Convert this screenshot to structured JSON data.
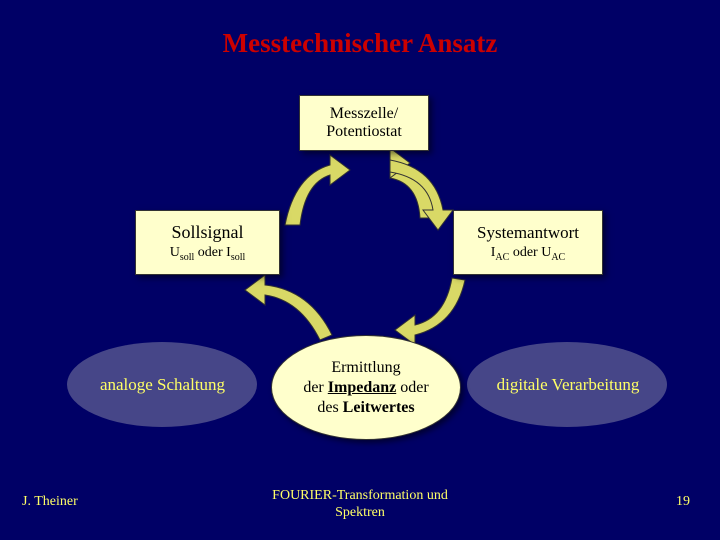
{
  "title": "Messtechnischer Ansatz",
  "boxes": {
    "top": {
      "line1": "Messzelle/",
      "line2": "Potentiostat"
    },
    "left": {
      "line1": "Sollsignal",
      "line2_html": "U<sub>soll</sub> oder I<sub>soll</sub>"
    },
    "right": {
      "line1": "Systemantwort",
      "line2_html": "I<sub>AC</sub> oder U<sub>AC</sub>"
    }
  },
  "ellipse": {
    "line1": "Ermittlung",
    "line2_html": "der <u><b>Impedanz</b></u> oder",
    "line3_html": "des <b>Leitwertes</b>"
  },
  "labels": {
    "left": "analoge Schaltung",
    "right": "digitale Verarbeitung"
  },
  "footer": {
    "author": "J. Theiner",
    "center_line1": "FOURIER-Transformation und",
    "center_line2": "Spektren",
    "page": "19"
  },
  "style": {
    "arrow_fill": "#d9d966",
    "arrow_stroke": "#333333",
    "background": "#000066",
    "box_fill": "#ffffcc",
    "title_color": "#cc0000",
    "label_color": "#ffff66"
  }
}
